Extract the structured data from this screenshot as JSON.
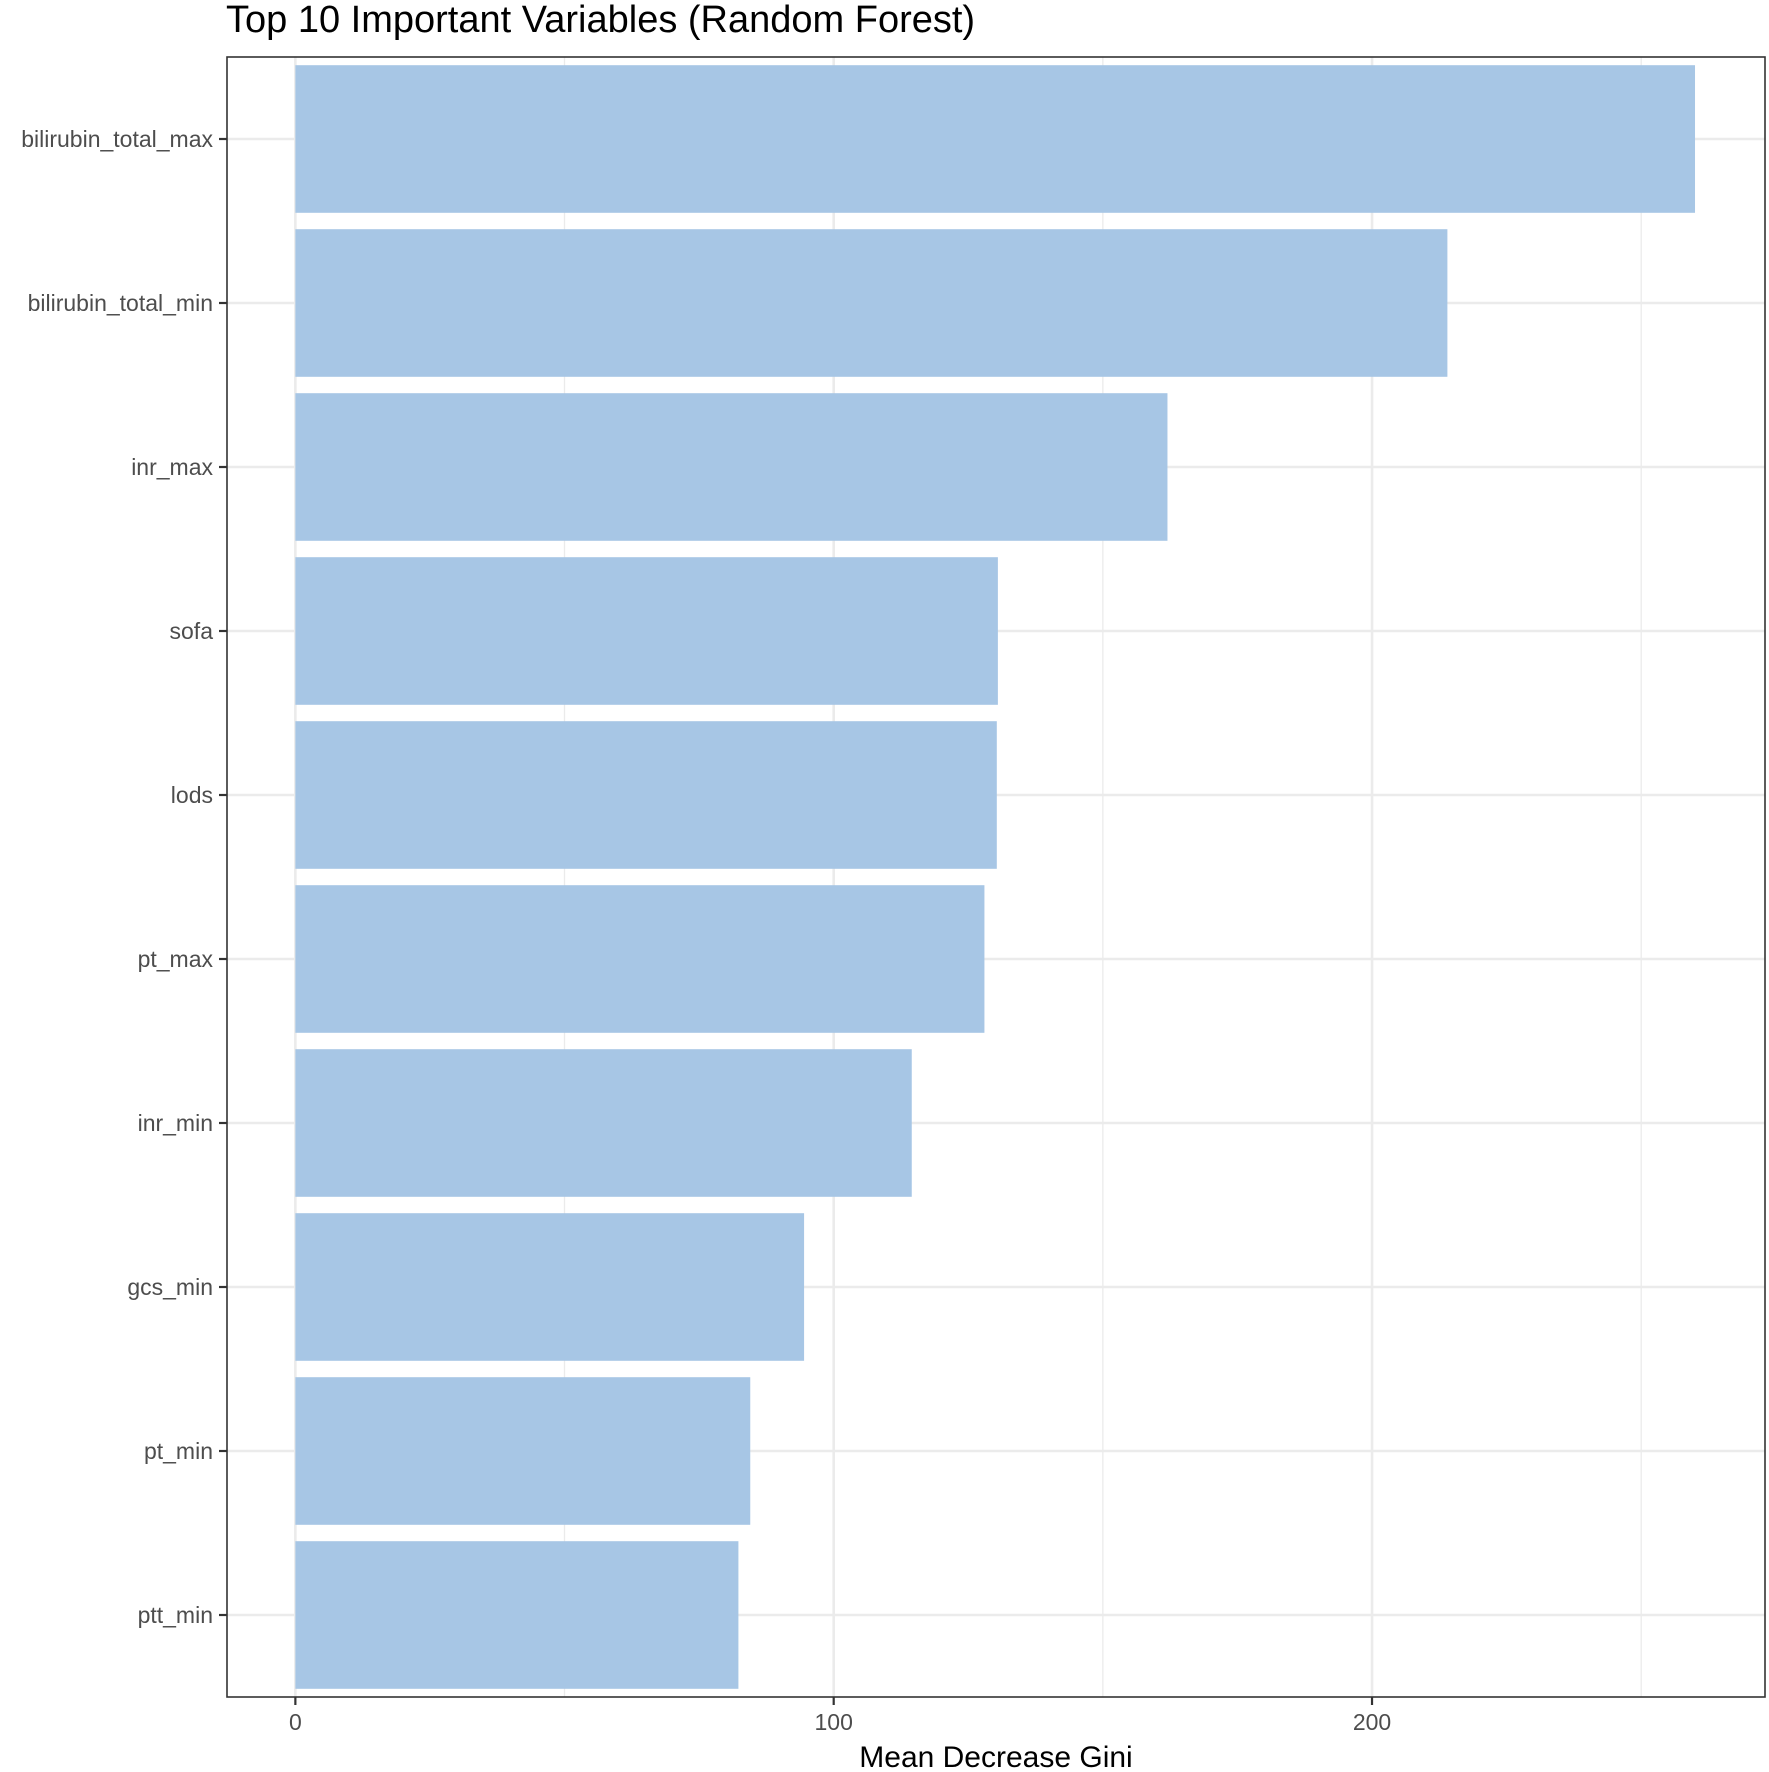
{
  "chart_data": {
    "type": "bar",
    "orientation": "horizontal",
    "title": "Top 10 Important Variables (Random Forest)",
    "xlabel": "Mean Decrease Gini",
    "ylabel": "",
    "categories": [
      "bilirubin_total_max",
      "bilirubin_total_min",
      "inr_max",
      "sofa",
      "lods",
      "pt_max",
      "inr_min",
      "gcs_min",
      "pt_min",
      "ptt_min"
    ],
    "values": [
      260,
      214,
      162,
      130.5,
      130.3,
      128,
      114.5,
      94.5,
      84.5,
      82.3
    ],
    "xlim": [
      -12.7,
      273
    ],
    "xticks": [
      0,
      100,
      200
    ],
    "xtick_labels": [
      "0",
      "100",
      "200"
    ],
    "grid": true,
    "bar_color": "#a7c6e5",
    "grid_color": "#ebebeb",
    "panel_border_color": "#333333"
  }
}
